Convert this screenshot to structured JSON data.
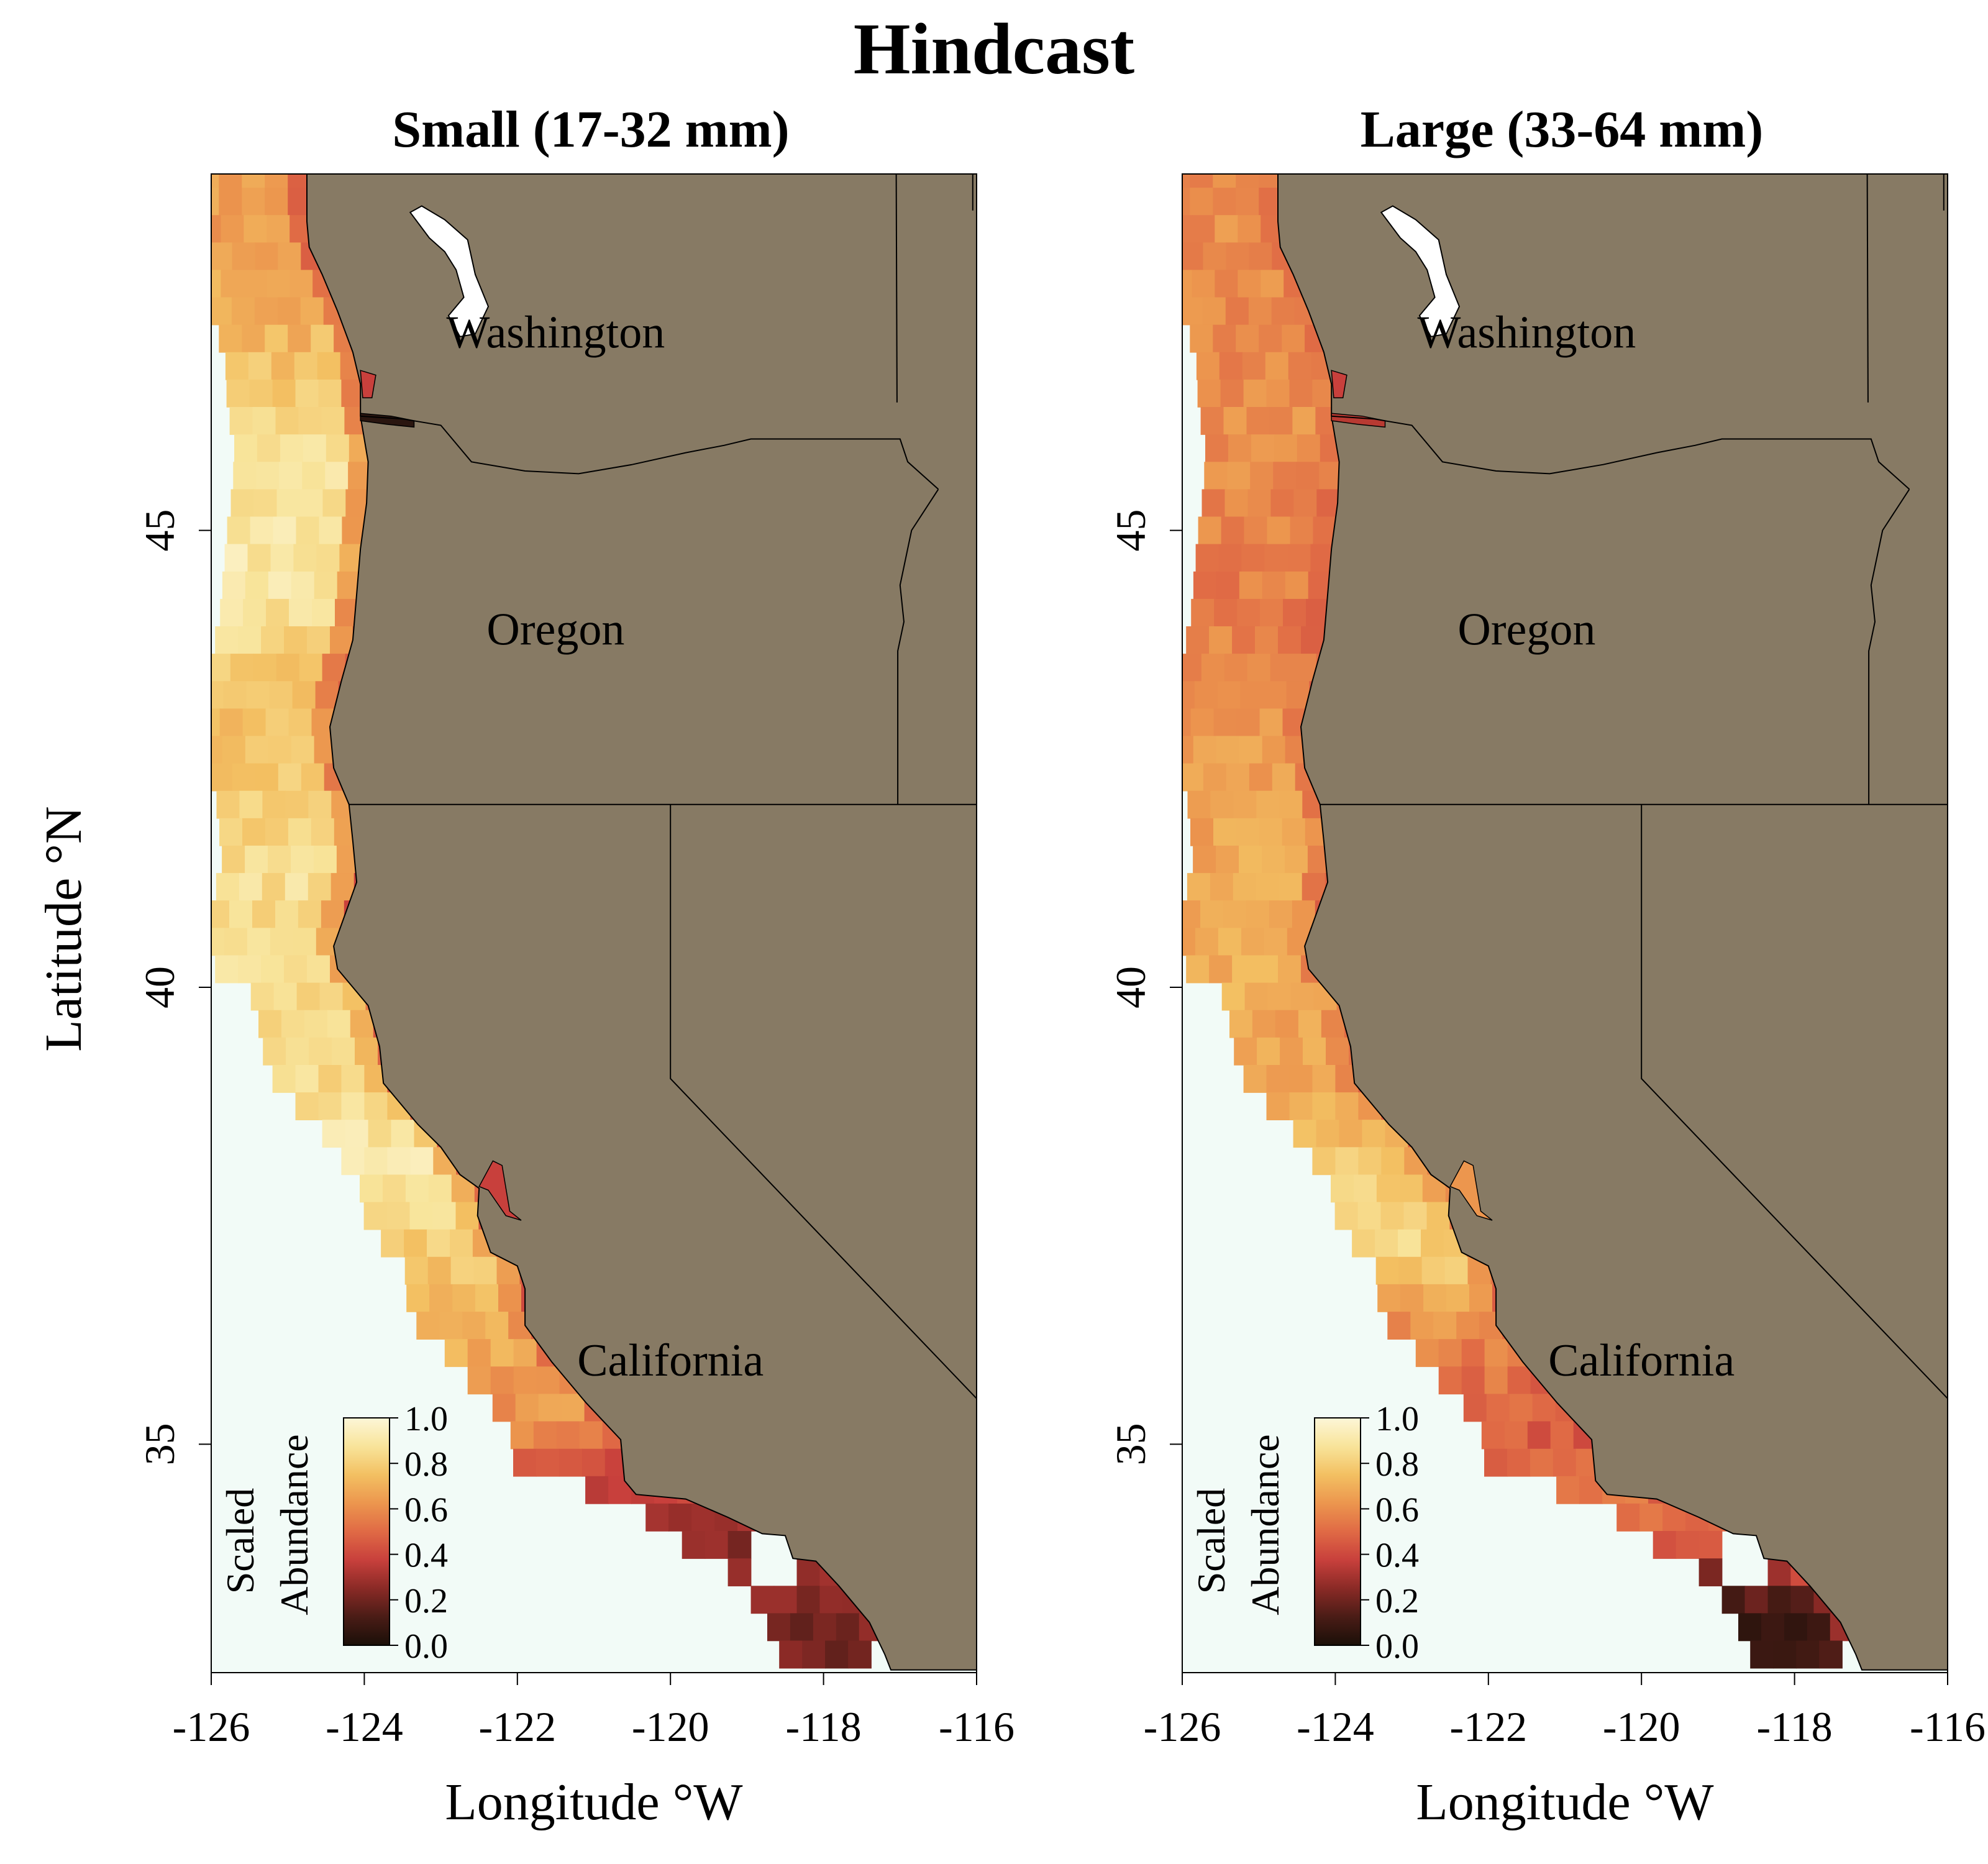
{
  "figure": {
    "title": "Hindcast",
    "xlabel": "Longitude °W",
    "ylabel": "Latitude °N",
    "x_ticks": [
      "-126",
      "-124",
      "-122",
      "-120",
      "-118",
      "-116"
    ],
    "y_ticks": [
      "45",
      "40",
      "35"
    ],
    "state_labels": [
      "Washington",
      "Oregon",
      "California"
    ]
  },
  "colors": {
    "ocean": "#f2fbf7",
    "land": "#877a64",
    "ramp": [
      "#1a0f08",
      "#4a1c16",
      "#8a2a26",
      "#c8403c",
      "#e06a45",
      "#ec964e",
      "#f3c062",
      "#f8e49a",
      "#fdf6d8"
    ]
  },
  "panels": [
    {
      "id": "small",
      "title": "Small (17-32 mm)",
      "legend_title_1": "Scaled",
      "legend_title_2": "Abundance",
      "legend_ticks": [
        "1.0",
        "0.8",
        "0.6",
        "0.4",
        "0.2",
        "0.0"
      ]
    },
    {
      "id": "large",
      "title": "Large (33-64 mm)",
      "legend_title_1": "Scaled",
      "legend_title_2": "Abundance",
      "legend_ticks": [
        "1.0",
        "0.8",
        "0.6",
        "0.4",
        "0.2",
        "0.0"
      ]
    }
  ],
  "chart_data": [
    {
      "type": "heatmap",
      "title": "Small (17-32 mm)",
      "xlabel": "Longitude °W",
      "ylabel": "Latitude °N",
      "xlim": [
        -126,
        -116
      ],
      "ylim": [
        32.5,
        48.9
      ],
      "zlim": [
        0,
        1
      ],
      "colorbar_label": "Scaled Abundance",
      "latitude_profile": [
        {
          "lat": 48.0,
          "value": 0.65
        },
        {
          "lat": 47.0,
          "value": 0.72
        },
        {
          "lat": 46.0,
          "value": 0.85
        },
        {
          "lat": 45.0,
          "value": 0.9
        },
        {
          "lat": 44.0,
          "value": 0.88
        },
        {
          "lat": 43.0,
          "value": 0.75
        },
        {
          "lat": 42.0,
          "value": 0.78
        },
        {
          "lat": 41.0,
          "value": 0.85
        },
        {
          "lat": 40.0,
          "value": 0.86
        },
        {
          "lat": 39.0,
          "value": 0.82
        },
        {
          "lat": 38.0,
          "value": 0.9
        },
        {
          "lat": 37.0,
          "value": 0.8
        },
        {
          "lat": 36.0,
          "value": 0.7
        },
        {
          "lat": 35.0,
          "value": 0.6
        },
        {
          "lat": 34.5,
          "value": 0.4
        },
        {
          "lat": 34.0,
          "value": 0.28
        },
        {
          "lat": 33.5,
          "value": 0.24
        },
        {
          "lat": 33.0,
          "value": 0.22
        }
      ],
      "nearshore_minimum": 0.35
    },
    {
      "type": "heatmap",
      "title": "Large (33-64 mm)",
      "xlabel": "Longitude °W",
      "ylabel": "Latitude °N",
      "xlim": [
        -126,
        -116
      ],
      "ylim": [
        32.5,
        48.9
      ],
      "zlim": [
        0,
        1
      ],
      "colorbar_label": "Scaled Abundance",
      "latitude_profile": [
        {
          "lat": 48.0,
          "value": 0.6
        },
        {
          "lat": 47.0,
          "value": 0.58
        },
        {
          "lat": 46.0,
          "value": 0.62
        },
        {
          "lat": 45.0,
          "value": 0.58
        },
        {
          "lat": 44.0,
          "value": 0.55
        },
        {
          "lat": 43.0,
          "value": 0.62
        },
        {
          "lat": 42.0,
          "value": 0.66
        },
        {
          "lat": 41.0,
          "value": 0.68
        },
        {
          "lat": 40.0,
          "value": 0.7
        },
        {
          "lat": 39.0,
          "value": 0.66
        },
        {
          "lat": 38.0,
          "value": 0.78
        },
        {
          "lat": 37.0,
          "value": 0.82
        },
        {
          "lat": 36.0,
          "value": 0.58
        },
        {
          "lat": 35.0,
          "value": 0.45
        },
        {
          "lat": 34.5,
          "value": 0.55
        },
        {
          "lat": 34.0,
          "value": 0.52
        },
        {
          "lat": 33.5,
          "value": 0.3
        },
        {
          "lat": 33.0,
          "value": 0.1
        }
      ],
      "nearshore_minimum": 0.45
    }
  ]
}
